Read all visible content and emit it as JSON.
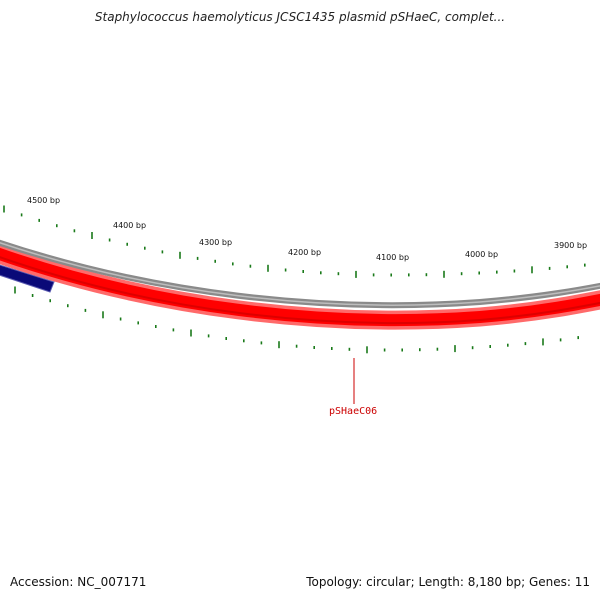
{
  "header": {
    "title": "Staphylococcus haemolyticus JCSC1435 plasmid pSHaeC, complet..."
  },
  "map": {
    "ruler_labels": [
      "4500 bp",
      "4400 bp",
      "4300 bp",
      "4200 bp",
      "4100 bp",
      "4000 bp",
      "3900 bp"
    ],
    "genes": [
      {
        "label": "pSHaeC06",
        "color": "#cc0000"
      }
    ],
    "colors": {
      "backbone": "#888888",
      "forward_strand_feature": "#ff0000",
      "reverse_strand_feature": "#0a0a78",
      "ticks": "#1a7a1a"
    }
  },
  "footer": {
    "accession": "Accession: NC_007171",
    "summary": "Topology: circular; Length: 8,180 bp; Genes: 11"
  }
}
